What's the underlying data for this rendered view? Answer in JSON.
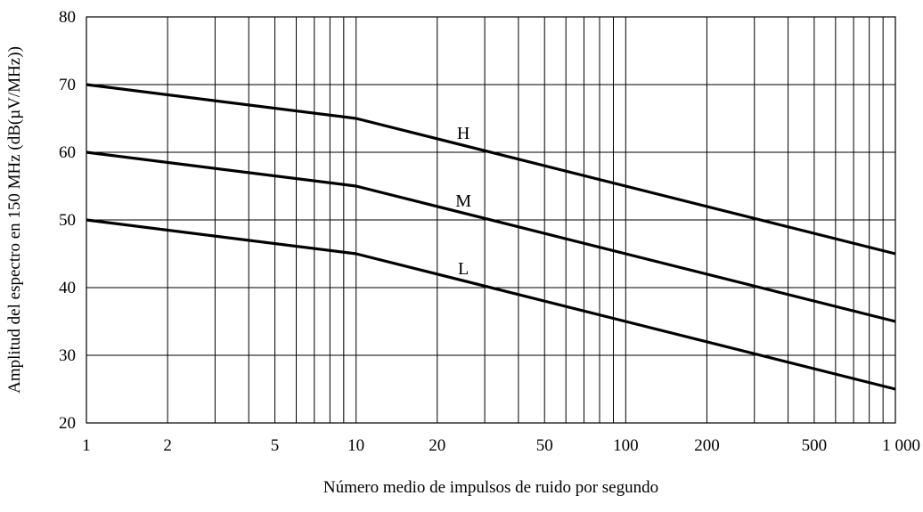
{
  "chart_data": {
    "type": "line",
    "title": "",
    "xlabel": "Número medio de impulsos de ruido por segundo",
    "ylabel": "Amplitud del espectro en 150 MHz (dB(µV/MHz))",
    "xscale": "log",
    "xlim": [
      1,
      1000
    ],
    "ylim": [
      20,
      80
    ],
    "grid": true,
    "x_tick_labels": [
      {
        "value": 1,
        "label": "1"
      },
      {
        "value": 2,
        "label": "2"
      },
      {
        "value": 5,
        "label": "5"
      },
      {
        "value": 10,
        "label": "10"
      },
      {
        "value": 20,
        "label": "20"
      },
      {
        "value": 50,
        "label": "50"
      },
      {
        "value": 100,
        "label": "100"
      },
      {
        "value": 200,
        "label": "200"
      },
      {
        "value": 500,
        "label": "500"
      },
      {
        "value": 1000,
        "label": "1 000"
      }
    ],
    "y_ticks": [
      20,
      30,
      40,
      50,
      60,
      70,
      80
    ],
    "series": [
      {
        "name": "H",
        "x": [
          1,
          10,
          1000
        ],
        "y": [
          70,
          65,
          45
        ],
        "label_at": [
          25,
          62
        ]
      },
      {
        "name": "M",
        "x": [
          1,
          10,
          1000
        ],
        "y": [
          60,
          55,
          35
        ],
        "label_at": [
          25,
          52
        ]
      },
      {
        "name": "L",
        "x": [
          1,
          10,
          1000
        ],
        "y": [
          50,
          45,
          25
        ],
        "label_at": [
          25,
          42
        ]
      }
    ]
  }
}
